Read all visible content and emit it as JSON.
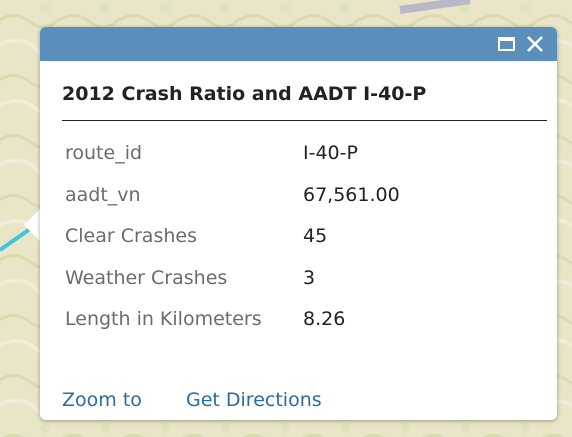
{
  "popup": {
    "title": "2012 Crash Ratio and AADT I-40-P",
    "fields": [
      {
        "label": "route_id",
        "value": "I-40-P"
      },
      {
        "label": "aadt_vn",
        "value": "67,561.00"
      },
      {
        "label": "Clear Crashes",
        "value": "45"
      },
      {
        "label": "Weather Crashes",
        "value": "3"
      },
      {
        "label": "Length in Kilometers",
        "value": "8.26"
      }
    ],
    "actions": [
      "Zoom to",
      "Get Directions"
    ]
  }
}
